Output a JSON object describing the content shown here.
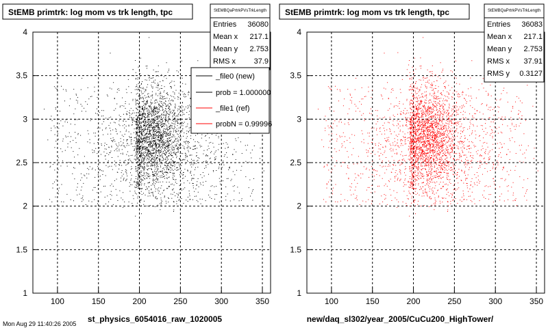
{
  "chart_data": [
    {
      "type": "scatter",
      "title": "StEMB primtrk: log mom vs trk length, tpc",
      "xlabel": "st_physics_6054016_raw_1020005",
      "ylabel": "",
      "xlim": [
        70,
        360
      ],
      "ylim": [
        1,
        4
      ],
      "x_ticks": [
        "100",
        "150",
        "200",
        "250",
        "300",
        "350"
      ],
      "y_ticks": [
        "1",
        "1.5",
        "2",
        "2.5",
        "3",
        "3.5",
        "4"
      ],
      "grid": true,
      "color": "#000000",
      "distribution": {
        "core_x": 215,
        "core_y": 2.8,
        "entries": 36080
      },
      "stats": {
        "name": "StEMBQaPrtrkPVsTrkLength",
        "entries_label": "Entries",
        "entries": "36080",
        "meanx_label": "Mean x",
        "meanx": "217.1",
        "meany_label": "Mean y",
        "meany": "2.753",
        "rmsx_label": "RMS x",
        "rmsx": "37.9"
      },
      "legend": [
        {
          "label": "_file0 (new)",
          "color": "#000000"
        },
        {
          "label": "prob = 1.000000",
          "color": "#000000"
        },
        {
          "label": "_file1 (ref)",
          "color": "#ff0000"
        },
        {
          "label": "probN = 0.99996",
          "color": "#ff0000"
        }
      ]
    },
    {
      "type": "scatter",
      "title": "StEMB primtrk: log mom vs trk length, tpc",
      "xlabel": "new/daq_sl302/year_2005/CuCu200_HighTower/",
      "ylabel": "",
      "xlim": [
        70,
        360
      ],
      "ylim": [
        1,
        4
      ],
      "x_ticks": [
        "100",
        "150",
        "200",
        "250",
        "300",
        "350"
      ],
      "y_ticks": [
        "1",
        "1.5",
        "2",
        "2.5",
        "3",
        "3.5",
        "4"
      ],
      "grid": true,
      "color": "#ff0000",
      "distribution": {
        "core_x": 215,
        "core_y": 2.8,
        "entries": 36083
      },
      "stats": {
        "name": "StEMBQaPrtrkPVsTrkLength",
        "entries_label": "Entries",
        "entries": "36083",
        "meanx_label": "Mean x",
        "meanx": "217.1",
        "meany_label": "Mean y",
        "meany": "2.753",
        "rmsx_label": "RMS x",
        "rmsx": "37.91",
        "rmsy_label": "RMS y",
        "rmsy": "0.3127"
      }
    }
  ],
  "footer_text": "Mon Aug 29 11:40:26 2005"
}
